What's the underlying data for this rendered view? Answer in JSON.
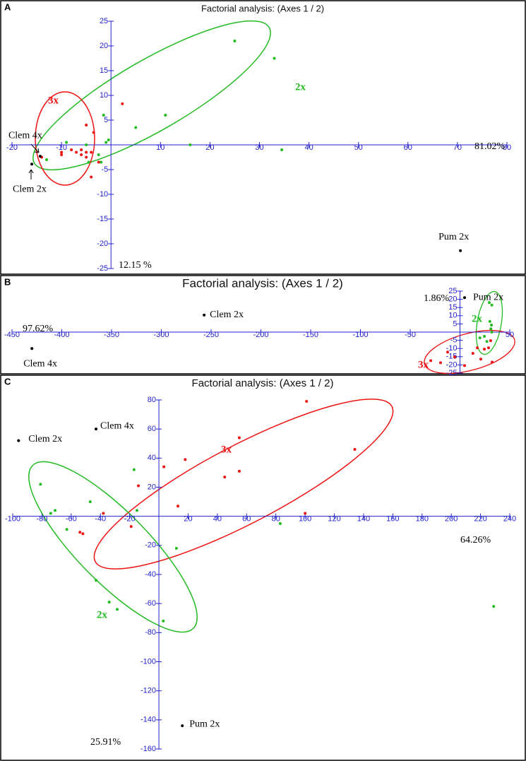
{
  "chart_data": [
    {
      "panel": "A",
      "type": "scatter",
      "title": "Factorial analysis: (Axes 1 / 2)",
      "xlim": [
        -20,
        80
      ],
      "ylim": [
        -25,
        25
      ],
      "xticks": [
        -20,
        -10,
        10,
        20,
        30,
        40,
        50,
        60,
        70,
        80
      ],
      "yticks": [
        -25,
        -20,
        -15,
        -10,
        -5,
        5,
        10,
        15,
        20,
        25
      ],
      "x_axis_label": "81.02%",
      "y_axis_label": "12.15 %",
      "series": [
        {
          "name": "2x",
          "color": "#22bb22",
          "x": [
            25,
            33,
            11,
            -1.5,
            5,
            -0.5,
            -1,
            16,
            34.5,
            -2.5,
            -2,
            -4.5,
            -9,
            -13,
            -5
          ],
          "y": [
            21,
            17.5,
            6,
            6,
            3.5,
            1,
            0.5,
            0,
            -1,
            -2,
            -3.5,
            -3.5,
            0.5,
            -3,
            0
          ]
        },
        {
          "name": "3x",
          "color": "#ee1111",
          "x": [
            2.3,
            -5,
            -3.5,
            -8,
            -7,
            -6,
            -5,
            -4,
            -5,
            -10,
            -10,
            -14,
            -2.5,
            -4,
            -6
          ],
          "y": [
            8.3,
            4,
            2.5,
            -1,
            -1.5,
            -1,
            -1.5,
            -1.5,
            -2.5,
            -1.5,
            -2,
            -2.5,
            -3.5,
            -6.5,
            -2
          ]
        }
      ],
      "labeled_color": "#000000",
      "labeled_points": [
        {
          "label": "Clem 4x",
          "x": -14.3,
          "y": -2.3
        },
        {
          "label": "Clem 2x",
          "x": -16,
          "y": -3.9
        },
        {
          "label": "Pum 2x",
          "x": 70.6,
          "y": -21.4
        }
      ]
    },
    {
      "panel": "B",
      "type": "scatter",
      "title": "Factorial analysis: (Axes 1 / 2)",
      "xlim": [
        -450,
        50
      ],
      "ylim": [
        -25,
        25
      ],
      "xticks": [
        -450,
        -400,
        -350,
        -300,
        -250,
        -200,
        -150,
        -100,
        -50,
        50
      ],
      "yticks": [
        -25,
        -20,
        -15,
        -10,
        -5,
        5,
        10,
        15,
        20,
        25
      ],
      "x_axis_label": "97.62%",
      "y_axis_label": "1.86%",
      "series": [
        {
          "name": "2x",
          "color": "#22bb22",
          "x": [
            29.4,
            32,
            30,
            31.6,
            31,
            24.5,
            27,
            20,
            32
          ],
          "y": [
            18,
            16.5,
            6.5,
            4.3,
            2,
            -2.6,
            -5.7,
            -3.5,
            0
          ]
        },
        {
          "name": "3x",
          "color": "#ee1111",
          "x": [
            -29.4,
            -19.5,
            -12.4,
            -5.3,
            4.6,
            13,
            17.4,
            20.9,
            28.7,
            30.8,
            32.3,
            24.5
          ],
          "y": [
            -17.4,
            -18.7,
            -12.2,
            -15.2,
            -20.4,
            -13,
            -9.6,
            -16.5,
            -9.6,
            -5.2,
            -18.3,
            -10.4
          ]
        }
      ],
      "labeled_color": "#000000",
      "labeled_points": [
        {
          "label": "Clem 2x",
          "x": -257,
          "y": 10.4
        },
        {
          "label": "Clem 4x",
          "x": -430,
          "y": -10
        },
        {
          "label": "Pum 2x",
          "x": 4.6,
          "y": 21
        }
      ]
    },
    {
      "panel": "C",
      "type": "scatter",
      "title": "Factorial analysis: (Axes 1 / 2)",
      "xlim": [
        -100,
        240
      ],
      "ylim": [
        -160,
        80
      ],
      "xticks": [
        -100,
        -80,
        -60,
        -40,
        -20,
        20,
        40,
        60,
        80,
        100,
        120,
        140,
        160,
        180,
        200,
        220,
        240
      ],
      "yticks": [
        -160,
        -140,
        -120,
        -100,
        -80,
        -60,
        -40,
        -20,
        20,
        40,
        60,
        80
      ],
      "x_axis_label": "64.26%",
      "y_axis_label": "25.91%",
      "series": [
        {
          "name": "2x",
          "color": "#22bb22",
          "x": [
            -81,
            -74,
            -71,
            -63,
            -47,
            -43,
            -34,
            -28.5,
            -17,
            -15,
            12,
            3,
            83,
            229
          ],
          "y": [
            22,
            2,
            4,
            -9,
            10,
            -44,
            -59,
            -64,
            32,
            4,
            -22,
            -72,
            -5,
            -62
          ]
        },
        {
          "name": "3x",
          "color": "#ee1111",
          "x": [
            101,
            134,
            55,
            55,
            45,
            18,
            3.4,
            -14,
            13,
            -38,
            -54,
            -52,
            -19,
            100
          ],
          "y": [
            79,
            46,
            54,
            31,
            27,
            39,
            34,
            21,
            7,
            2,
            -11,
            -12,
            -7,
            2
          ]
        }
      ],
      "labeled_color": "#000000",
      "labeled_points": [
        {
          "label": "Clem 2x",
          "x": -96,
          "y": 52
        },
        {
          "label": "Clem 4x",
          "x": -43,
          "y": 60
        },
        {
          "label": "Pum 2x",
          "x": 16,
          "y": -144
        }
      ]
    }
  ]
}
